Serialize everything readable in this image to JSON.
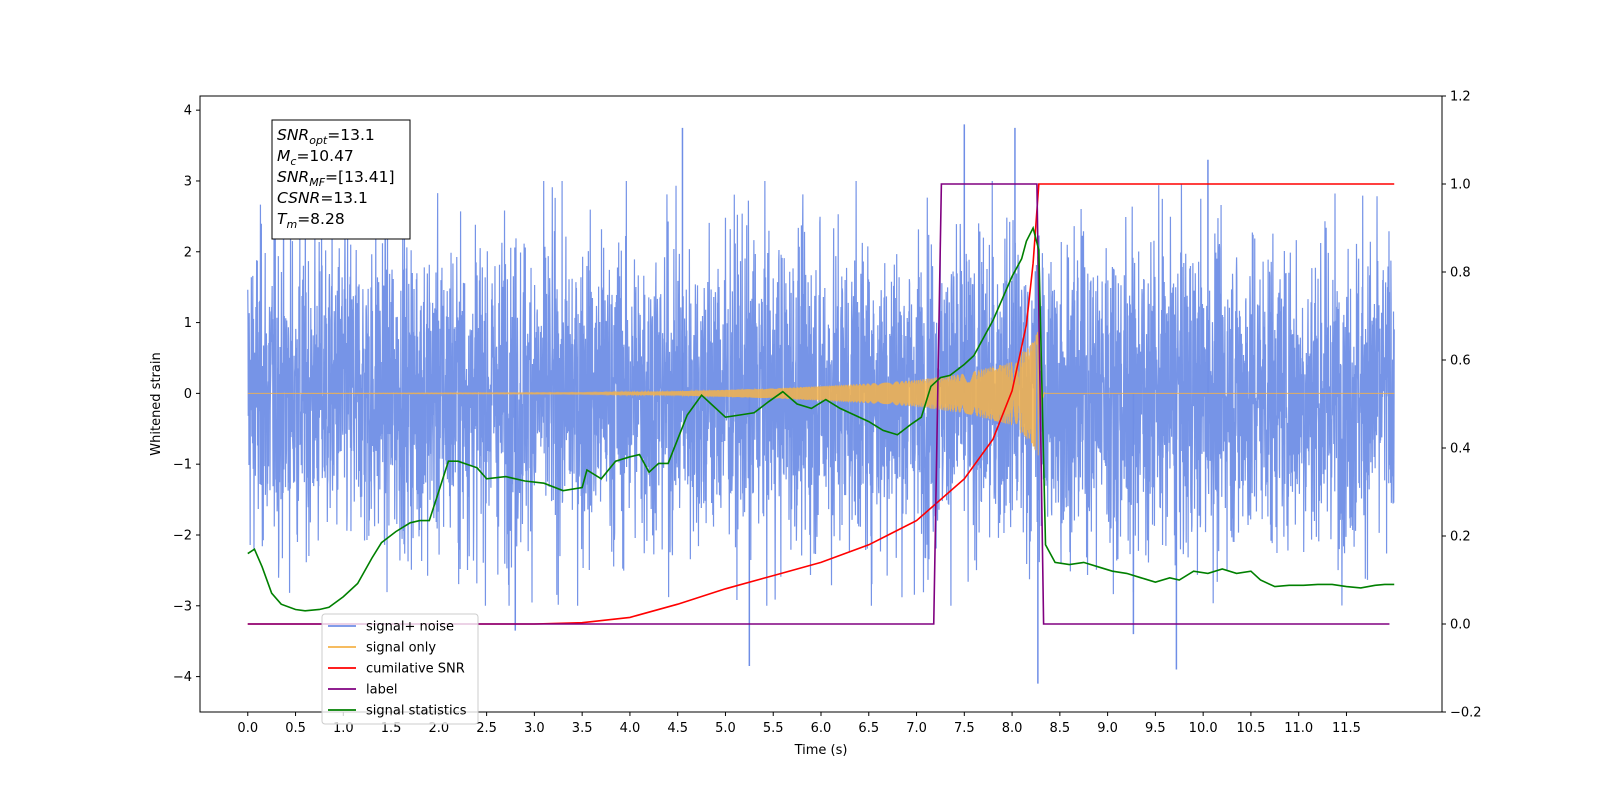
{
  "chart_data": {
    "type": "line",
    "xlabel": "Time (s)",
    "ylabel": "Whitened strain",
    "xlim": [
      -0.5,
      12.5
    ],
    "ylim": [
      -4.5,
      4.2
    ],
    "y2lim": [
      -0.2,
      1.2
    ],
    "x_ticks": [
      0.0,
      0.5,
      1.0,
      1.5,
      2.0,
      2.5,
      3.0,
      3.5,
      4.0,
      4.5,
      5.0,
      5.5,
      6.0,
      6.5,
      7.0,
      7.5,
      8.0,
      8.5,
      9.0,
      9.5,
      10.0,
      10.5,
      11.0,
      11.5
    ],
    "x_tick_labels": [
      "0.0",
      "0.5",
      "1.0",
      "1.5",
      "2.0",
      "2.5",
      "3.0",
      "3.5",
      "4.0",
      "4.5",
      "5.0",
      "5.5",
      "6.0",
      "6.5",
      "7.0",
      "7.5",
      "8.0",
      "8.5",
      "9.0",
      "9.5",
      "10.0",
      "10.5",
      "11.0",
      "11.5"
    ],
    "y_ticks": [
      -4,
      -3,
      -2,
      -1,
      0,
      1,
      2,
      3,
      4
    ],
    "y_tick_labels": [
      "−4",
      "−3",
      "−2",
      "−1",
      "0",
      "1",
      "2",
      "3",
      "4"
    ],
    "y2_ticks": [
      -0.2,
      0.0,
      0.2,
      0.4,
      0.6,
      0.8,
      1.0,
      1.2
    ],
    "y2_tick_labels": [
      "−0.2",
      "0.0",
      "0.2",
      "0.4",
      "0.6",
      "0.8",
      "1.0",
      "1.2"
    ],
    "grid": false,
    "legend_position": "lower-left",
    "colors": {
      "signal_noise": "#6f8ee6",
      "signal_only": "#f5b34a",
      "cumulative_snr": "#ff0000",
      "label": "#800080",
      "signal_statistics": "#008000"
    },
    "info_box": {
      "lines": [
        {
          "var": "SNR",
          "sub": "opt",
          "value": "=13.1"
        },
        {
          "var": "M",
          "sub": "c",
          "value": "=10.47"
        },
        {
          "var": "SNR",
          "sub": "MF",
          "value": "=[13.41]"
        },
        {
          "var": "CSNR",
          "sub": "",
          "value": "=13.1"
        },
        {
          "var": "T",
          "sub": "m",
          "value": "=8.28"
        }
      ]
    },
    "series": [
      {
        "name": "signal+ noise",
        "axis": "left",
        "t_range": [
          0.0,
          12.0
        ],
        "noise_amplitude": 2.2,
        "spikes": [
          [
            4.55,
            3.75
          ],
          [
            7.5,
            3.8
          ],
          [
            8.03,
            3.75
          ],
          [
            10.05,
            3.3
          ],
          [
            5.25,
            -3.85
          ],
          [
            8.27,
            -4.1
          ],
          [
            9.72,
            -3.9
          ],
          [
            9.27,
            -3.4
          ],
          [
            2.8,
            -3.35
          ]
        ]
      },
      {
        "name": "signal only",
        "axis": "left",
        "t_range": [
          0.0,
          12.0
        ],
        "merger_time": 8.28,
        "amplitude_envelope": [
          [
            3.5,
            0.01
          ],
          [
            4.5,
            0.03
          ],
          [
            5.5,
            0.07
          ],
          [
            6.5,
            0.14
          ],
          [
            7.0,
            0.19
          ],
          [
            7.5,
            0.28
          ],
          [
            8.0,
            0.45
          ],
          [
            8.2,
            0.7
          ],
          [
            8.28,
            0.9
          ]
        ]
      },
      {
        "name": "cumilative SNR",
        "axis": "right",
        "points": [
          [
            0.0,
            0.0
          ],
          [
            3.0,
            0.0
          ],
          [
            3.5,
            0.003
          ],
          [
            4.0,
            0.015
          ],
          [
            4.5,
            0.045
          ],
          [
            5.0,
            0.08
          ],
          [
            5.5,
            0.11
          ],
          [
            6.0,
            0.14
          ],
          [
            6.5,
            0.18
          ],
          [
            7.0,
            0.235
          ],
          [
            7.5,
            0.33
          ],
          [
            7.8,
            0.42
          ],
          [
            8.0,
            0.53
          ],
          [
            8.15,
            0.68
          ],
          [
            8.22,
            0.82
          ],
          [
            8.28,
            1.0
          ],
          [
            12.0,
            1.0
          ]
        ]
      },
      {
        "name": "label",
        "axis": "right",
        "points": [
          [
            0.0,
            0.0
          ],
          [
            7.18,
            0.0
          ],
          [
            7.26,
            1.0
          ],
          [
            8.26,
            1.0
          ],
          [
            8.33,
            0.0
          ],
          [
            11.95,
            0.0
          ]
        ]
      },
      {
        "name": "signal statistics",
        "axis": "right",
        "points": [
          [
            0.0,
            0.16
          ],
          [
            0.07,
            0.17
          ],
          [
            0.15,
            0.13
          ],
          [
            0.25,
            0.07
          ],
          [
            0.35,
            0.045
          ],
          [
            0.5,
            0.033
          ],
          [
            0.6,
            0.03
          ],
          [
            0.75,
            0.033
          ],
          [
            0.85,
            0.038
          ],
          [
            1.0,
            0.062
          ],
          [
            1.15,
            0.092
          ],
          [
            1.3,
            0.15
          ],
          [
            1.4,
            0.185
          ],
          [
            1.55,
            0.21
          ],
          [
            1.7,
            0.23
          ],
          [
            1.8,
            0.235
          ],
          [
            1.9,
            0.235
          ],
          [
            2.0,
            0.302
          ],
          [
            2.1,
            0.37
          ],
          [
            2.2,
            0.37
          ],
          [
            2.4,
            0.355
          ],
          [
            2.5,
            0.33
          ],
          [
            2.7,
            0.335
          ],
          [
            2.9,
            0.325
          ],
          [
            3.1,
            0.32
          ],
          [
            3.3,
            0.303
          ],
          [
            3.5,
            0.31
          ],
          [
            3.55,
            0.35
          ],
          [
            3.7,
            0.33
          ],
          [
            3.85,
            0.37
          ],
          [
            4.0,
            0.38
          ],
          [
            4.1,
            0.385
          ],
          [
            4.2,
            0.345
          ],
          [
            4.3,
            0.365
          ],
          [
            4.4,
            0.365
          ],
          [
            4.5,
            0.42
          ],
          [
            4.6,
            0.475
          ],
          [
            4.75,
            0.52
          ],
          [
            4.85,
            0.5
          ],
          [
            5.0,
            0.47
          ],
          [
            5.15,
            0.475
          ],
          [
            5.3,
            0.48
          ],
          [
            5.45,
            0.505
          ],
          [
            5.6,
            0.528
          ],
          [
            5.75,
            0.5
          ],
          [
            5.9,
            0.49
          ],
          [
            6.05,
            0.51
          ],
          [
            6.2,
            0.49
          ],
          [
            6.35,
            0.475
          ],
          [
            6.5,
            0.46
          ],
          [
            6.65,
            0.44
          ],
          [
            6.8,
            0.43
          ],
          [
            6.95,
            0.455
          ],
          [
            7.05,
            0.47
          ],
          [
            7.15,
            0.54
          ],
          [
            7.25,
            0.56
          ],
          [
            7.35,
            0.565
          ],
          [
            7.5,
            0.59
          ],
          [
            7.6,
            0.61
          ],
          [
            7.7,
            0.65
          ],
          [
            7.8,
            0.69
          ],
          [
            7.9,
            0.74
          ],
          [
            8.0,
            0.79
          ],
          [
            8.1,
            0.83
          ],
          [
            8.15,
            0.87
          ],
          [
            8.22,
            0.9
          ],
          [
            8.28,
            0.85
          ],
          [
            8.35,
            0.18
          ],
          [
            8.45,
            0.14
          ],
          [
            8.6,
            0.135
          ],
          [
            8.75,
            0.14
          ],
          [
            8.9,
            0.13
          ],
          [
            9.05,
            0.12
          ],
          [
            9.2,
            0.115
          ],
          [
            9.35,
            0.105
          ],
          [
            9.5,
            0.095
          ],
          [
            9.65,
            0.105
          ],
          [
            9.75,
            0.1
          ],
          [
            9.9,
            0.12
          ],
          [
            10.05,
            0.115
          ],
          [
            10.2,
            0.125
          ],
          [
            10.35,
            0.115
          ],
          [
            10.5,
            0.12
          ],
          [
            10.6,
            0.1
          ],
          [
            10.75,
            0.085
          ],
          [
            10.9,
            0.088
          ],
          [
            11.05,
            0.088
          ],
          [
            11.2,
            0.09
          ],
          [
            11.35,
            0.09
          ],
          [
            11.5,
            0.085
          ],
          [
            11.65,
            0.082
          ],
          [
            11.8,
            0.088
          ],
          [
            11.9,
            0.09
          ],
          [
            12.0,
            0.09
          ]
        ]
      }
    ]
  }
}
